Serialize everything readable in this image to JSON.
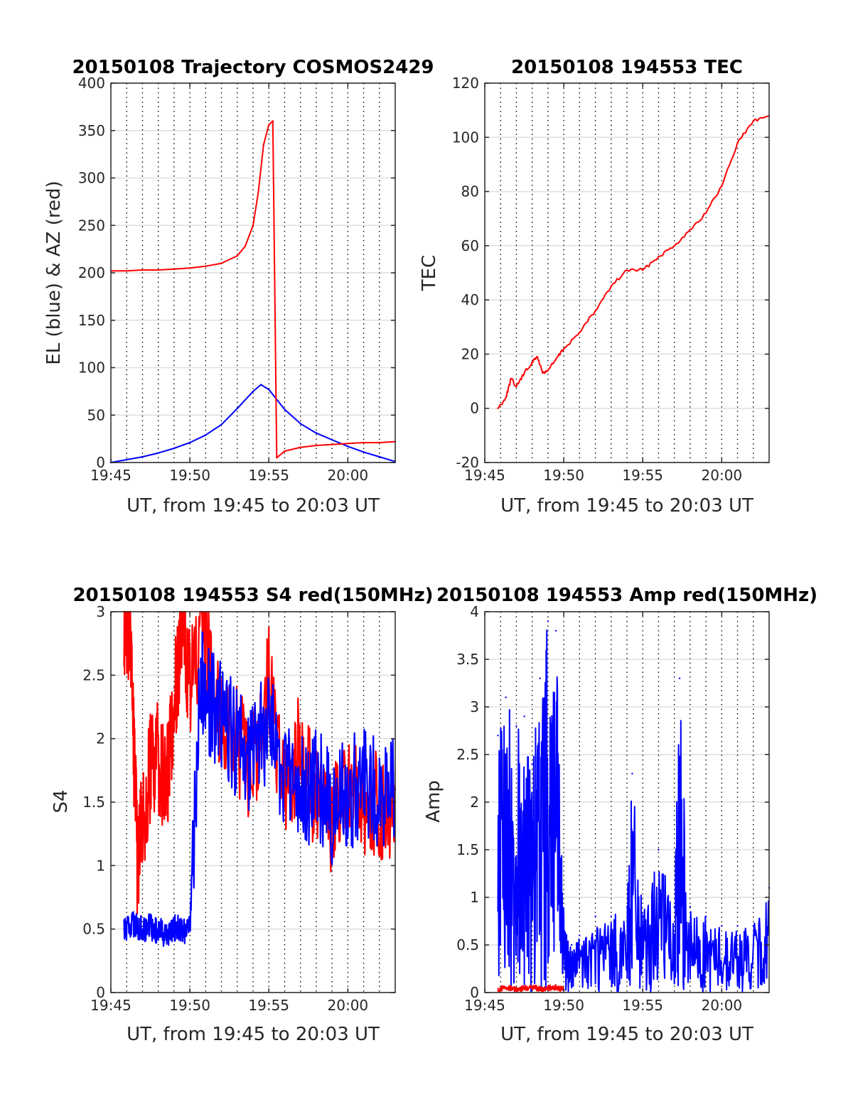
{
  "chart_data": [
    {
      "type": "line",
      "title": "20150108 Trajectory COSMOS2429",
      "xlabel": "UT, from 19:45 to 20:03 UT",
      "ylabel": "EL (blue) & AZ (red)",
      "xlim": [
        "19:45",
        "20:03"
      ],
      "ylim": [
        0,
        400
      ],
      "xtick_labels": [
        "19:45",
        "19:50",
        "19:55",
        "20:00"
      ],
      "yticks": [
        0,
        50,
        100,
        150,
        200,
        250,
        300,
        350,
        400
      ],
      "grid": true,
      "series": [
        {
          "color": "#0000ff",
          "x": [
            "19:45",
            "19:46",
            "19:47",
            "19:48",
            "19:49",
            "19:50",
            "19:51",
            "19:52",
            "19:53",
            "19:54",
            "19:54:30",
            "19:55",
            "19:56",
            "19:57",
            "19:58",
            "19:59",
            "20:00",
            "20:01",
            "20:02",
            "20:03"
          ],
          "y": [
            0,
            3,
            6,
            10,
            15,
            21,
            29,
            40,
            57,
            75,
            82,
            77,
            56,
            41,
            31,
            24,
            17,
            11,
            6,
            1
          ]
        },
        {
          "color": "#ff0000",
          "x": [
            "19:45",
            "19:46",
            "19:47",
            "19:48",
            "19:49",
            "19:50",
            "19:51",
            "19:52",
            "19:53",
            "19:53:30",
            "19:54",
            "19:54:20",
            "19:54:40",
            "19:55",
            "19:55:15",
            "19:55:30",
            "19:56",
            "19:57",
            "19:58",
            "19:59",
            "20:00",
            "20:01",
            "20:02",
            "20:03"
          ],
          "y": [
            202,
            202,
            203,
            203,
            204,
            205,
            207,
            210,
            218,
            228,
            250,
            285,
            335,
            356,
            360,
            5,
            12,
            16,
            18,
            19,
            20,
            21,
            21,
            22
          ]
        }
      ]
    },
    {
      "type": "line",
      "title": "20150108 194553 TEC",
      "xlabel": "UT, from 19:45 to 20:03 UT",
      "ylabel": "TEC",
      "xlim": [
        "19:45",
        "20:03"
      ],
      "ylim": [
        -20,
        120
      ],
      "xtick_labels": [
        "19:45",
        "19:50",
        "19:55",
        "20:00"
      ],
      "yticks": [
        -20,
        0,
        20,
        40,
        60,
        80,
        100,
        120
      ],
      "grid": true,
      "series": [
        {
          "color": "#ff0000",
          "x": [
            "19:45:50",
            "19:46:20",
            "19:46:40",
            "19:47",
            "19:47:30",
            "19:48",
            "19:48:20",
            "19:48:40",
            "19:49",
            "19:49:30",
            "19:50",
            "19:51",
            "19:52",
            "19:53",
            "19:54",
            "19:55",
            "19:56",
            "19:57",
            "19:58",
            "19:59",
            "20:00",
            "20:01",
            "20:02",
            "20:03"
          ],
          "y": [
            0,
            4,
            11,
            8,
            13,
            17,
            19,
            13,
            14,
            18,
            22,
            28,
            36,
            45,
            51,
            51,
            56,
            60,
            66,
            72,
            82,
            98,
            106,
            108
          ]
        }
      ]
    },
    {
      "type": "line",
      "title": "20150108 194553 S4 red(150MHz)",
      "xlabel": "UT, from 19:45 to 20:03 UT",
      "ylabel": "S4",
      "xlim": [
        "19:45",
        "20:03"
      ],
      "ylim": [
        0,
        3
      ],
      "xtick_labels": [
        "19:45",
        "19:50",
        "19:55",
        "20:00"
      ],
      "yticks": [
        0,
        0.5,
        1,
        1.5,
        2,
        2.5,
        3
      ],
      "grid": true,
      "series": [
        {
          "color": "#ff0000",
          "x": [
            "19:45:50",
            "19:46:15",
            "19:46:40",
            "19:47",
            "19:47:30",
            "19:48",
            "19:48:30",
            "19:49",
            "19:49:30",
            "19:50",
            "19:51",
            "19:52",
            "19:53",
            "19:54",
            "19:55",
            "19:56",
            "19:57",
            "19:58",
            "19:59",
            "20:00",
            "20:01",
            "20:02",
            "20:03"
          ],
          "y": [
            3,
            2.8,
            1.1,
            1.4,
            1.8,
            1.9,
            1.6,
            2.4,
            2.9,
            2.5,
            2.8,
            2.2,
            2.0,
            1.8,
            2.5,
            1.5,
            2.0,
            1.5,
            1.4,
            1.6,
            1.5,
            1.5,
            1.5
          ]
        },
        {
          "color": "#0000ff",
          "x": [
            "19:45:50",
            "19:46:30",
            "19:47",
            "19:47:30",
            "19:48",
            "19:48:30",
            "19:49",
            "19:49:30",
            "19:50",
            "19:50:40",
            "19:51",
            "19:52",
            "19:53",
            "19:54",
            "19:55",
            "19:56",
            "19:57",
            "19:58",
            "19:59",
            "20:00",
            "20:01",
            "20:02",
            "20:03"
          ],
          "y": [
            0.5,
            0.55,
            0.5,
            0.52,
            0.5,
            0.48,
            0.53,
            0.5,
            0.5,
            2.6,
            2.4,
            2.2,
            2.0,
            1.9,
            2.2,
            1.7,
            1.6,
            1.7,
            1.5,
            1.6,
            1.7,
            1.6,
            1.6
          ]
        }
      ]
    },
    {
      "type": "line",
      "title": "20150108 194553 Amp red(150MHz)",
      "xlabel": "UT, from 19:45 to 20:03 UT",
      "ylabel": "Amp",
      "xlim": [
        "19:45",
        "20:03"
      ],
      "ylim": [
        0,
        4
      ],
      "xtick_labels": [
        "19:45",
        "19:50",
        "19:55",
        "20:00"
      ],
      "yticks": [
        0,
        0.5,
        1,
        1.5,
        2,
        2.5,
        3,
        3.5,
        4
      ],
      "grid": true,
      "series": [
        {
          "color": "#0000ff",
          "x": [
            "19:45:50",
            "19:46:20",
            "19:47",
            "19:47:30",
            "19:48",
            "19:48:30",
            "19:49",
            "19:49:30",
            "19:50",
            "19:50:30",
            "19:51",
            "19:52",
            "19:53",
            "19:54",
            "19:54:20",
            "19:55",
            "19:56",
            "19:57",
            "19:57:20",
            "19:58",
            "19:59",
            "20:00",
            "20:01",
            "20:02",
            "20:03"
          ],
          "y": [
            2.7,
            3.1,
            2.8,
            2.9,
            2.4,
            3.3,
            3.9,
            3.8,
            0.8,
            0.5,
            0.6,
            0.8,
            0.8,
            0.9,
            2.3,
            0.8,
            1.5,
            0.9,
            3.3,
            0.9,
            0.8,
            0.7,
            0.7,
            0.7,
            1.1
          ]
        },
        {
          "color": "#ff0000",
          "x": [
            "19:45:50",
            "19:46:30",
            "19:47",
            "19:47:30",
            "19:48",
            "19:48:30",
            "19:49",
            "19:49:30",
            "19:50"
          ],
          "y": [
            0.04,
            0.05,
            0.03,
            0.05,
            0.06,
            0.04,
            0.05,
            0.06,
            0.03
          ]
        }
      ]
    }
  ]
}
